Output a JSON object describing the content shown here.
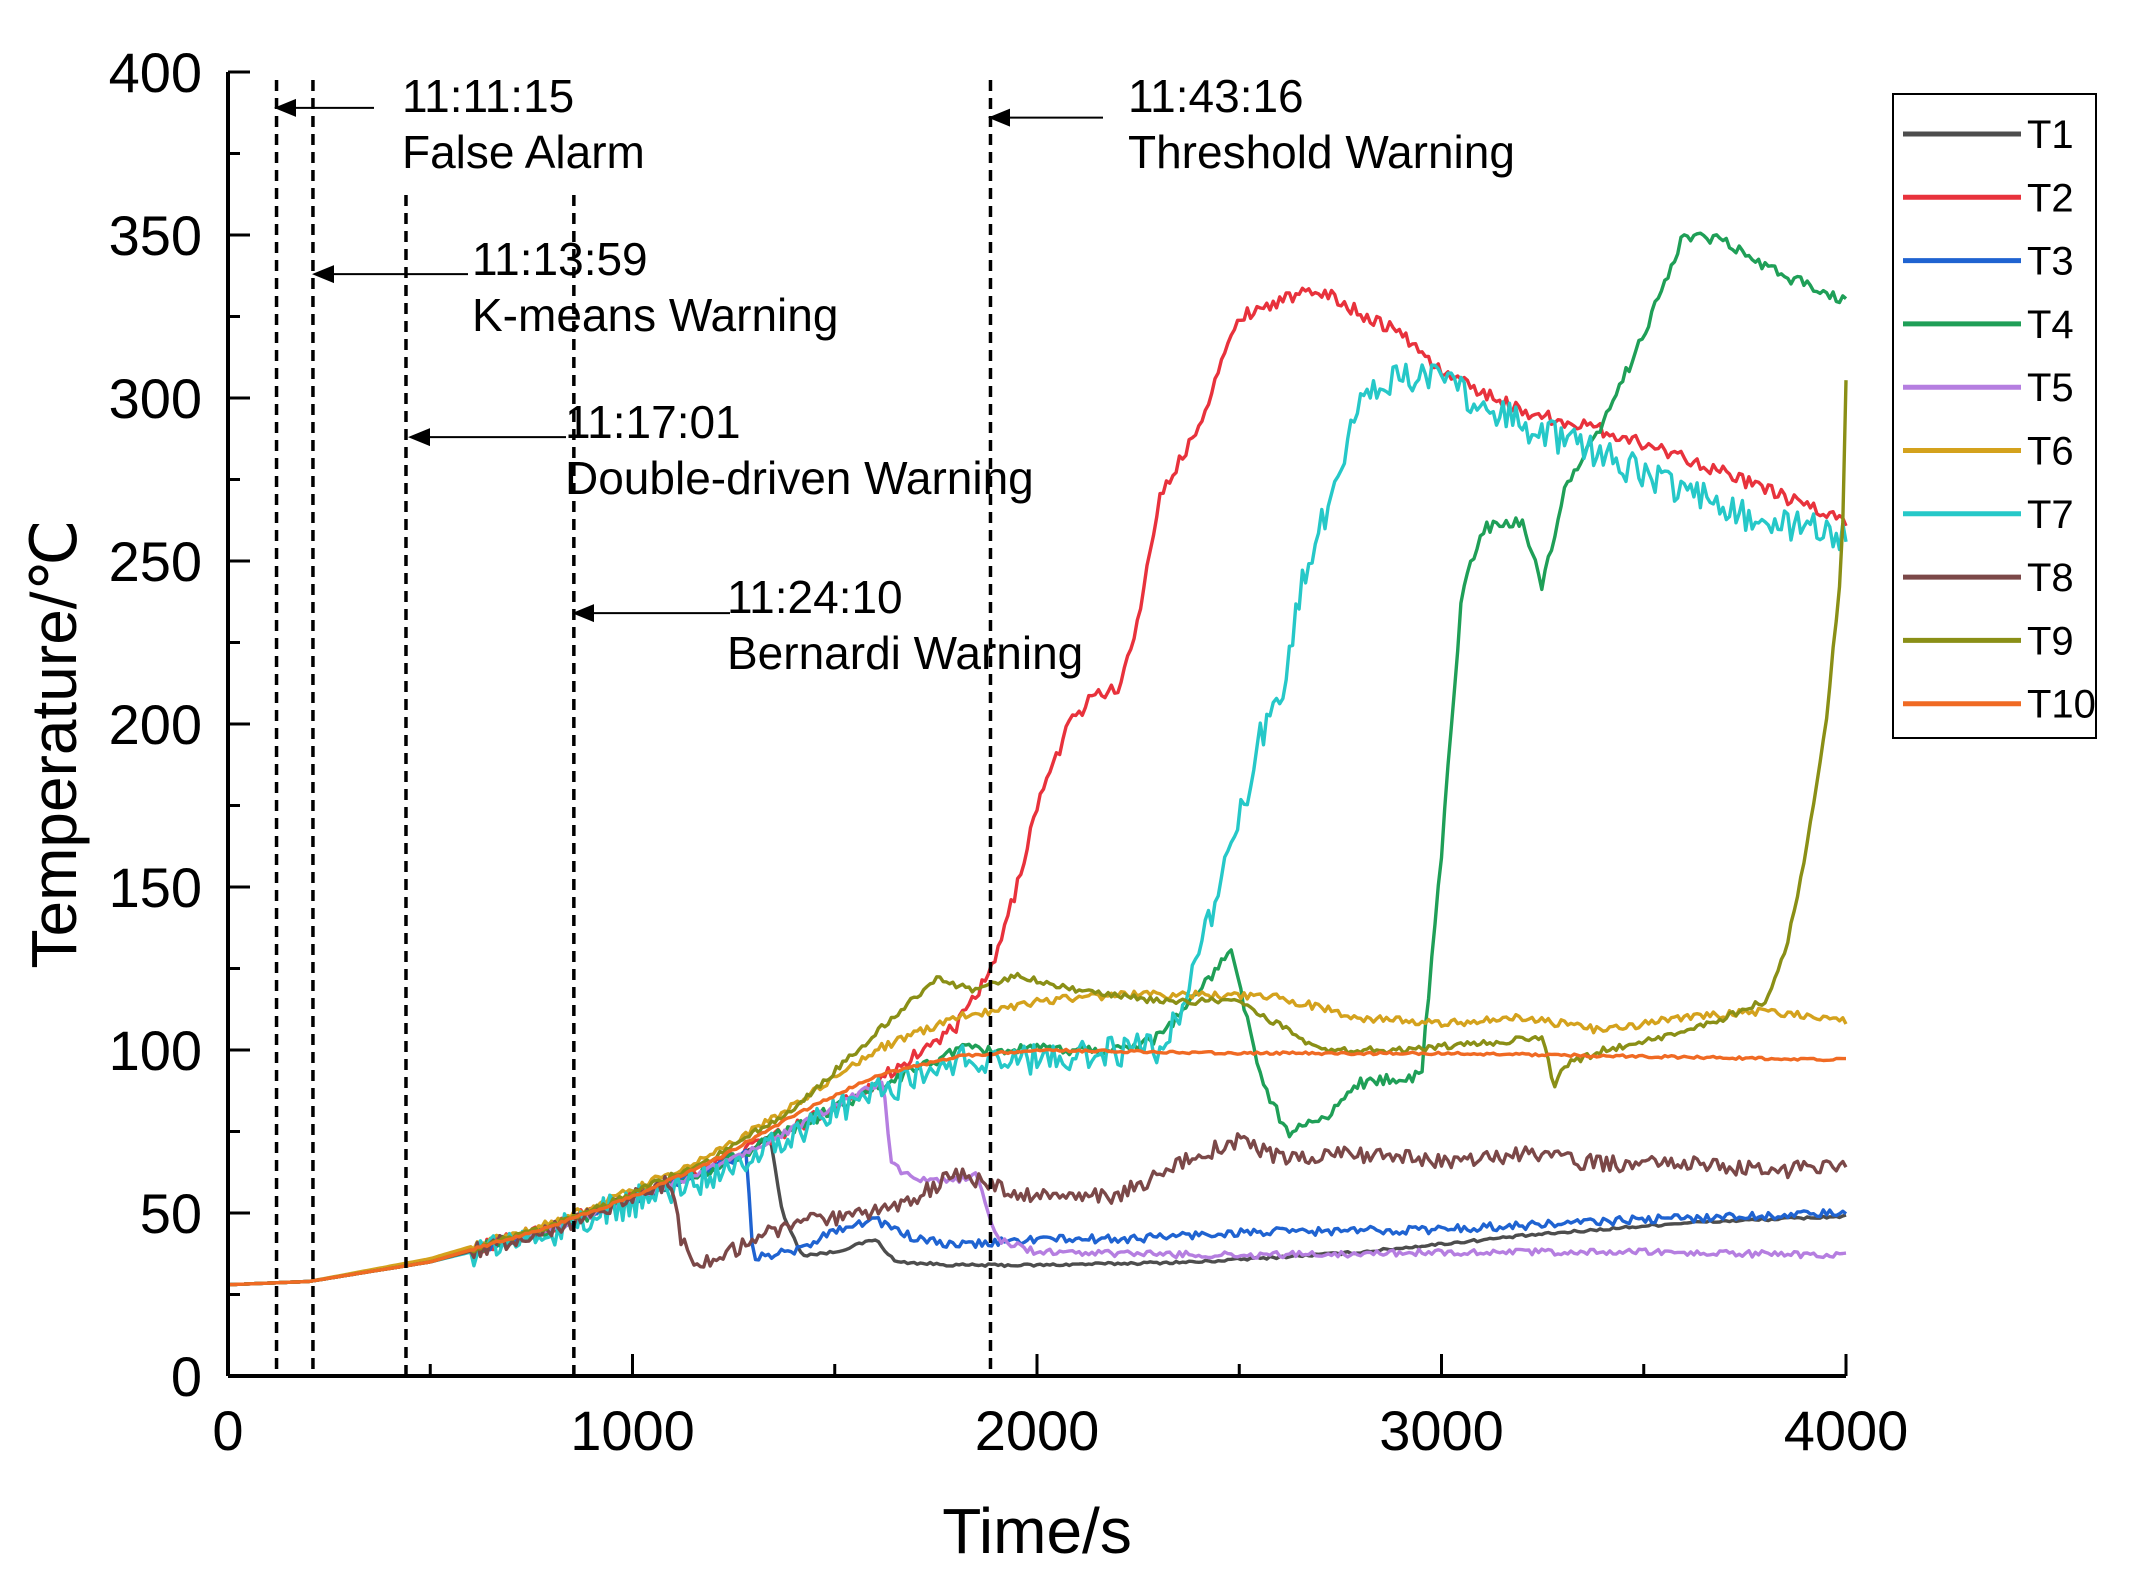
{
  "chart_data": {
    "type": "line",
    "title": "",
    "xlabel": "Time/s",
    "ylabel": "Temperature/℃",
    "xlim": [
      0,
      4000
    ],
    "ylim": [
      0,
      400
    ],
    "xticks": [
      0,
      1000,
      2000,
      3000,
      4000
    ],
    "xtick_labels": [
      "0",
      "1000",
      "2000",
      "3000",
      "4000"
    ],
    "yticks": [
      0,
      50,
      100,
      150,
      200,
      250,
      300,
      350,
      400
    ],
    "ytick_labels": [
      "0",
      "50",
      "100",
      "150",
      "200",
      "250",
      "300",
      "350",
      "400"
    ],
    "grid": false,
    "legend_position": "top-right",
    "annotations": [
      {
        "time_line": 120,
        "time_label": "11:11:15",
        "text": "False Alarm",
        "arrow_value": 389
      },
      {
        "time_line": 210,
        "time_label": "11:13:59",
        "text": "K-means Warning",
        "arrow_value": 338
      },
      {
        "time_line": 440,
        "time_label": "11:17:01",
        "text": "Double-driven Warning",
        "arrow_value": 288
      },
      {
        "time_line": 855,
        "time_label": "11:24:10",
        "text": "Bernardi Warning",
        "arrow_value": 234
      },
      {
        "time_line": 1885,
        "time_label": "11:43:16",
        "text": "Threshold Warning",
        "arrow_value": 386
      }
    ],
    "series": [
      {
        "name": "T1",
        "color": "#4d4d4d",
        "noise": 0.4,
        "x": [
          0,
          200,
          500,
          800,
          1000,
          1200,
          1300,
          1340,
          1370,
          1420,
          1500,
          1600,
          1650,
          1800,
          2000,
          2400,
          2800,
          3200,
          3600,
          4000
        ],
        "y": [
          28,
          29,
          35,
          45,
          54,
          63,
          70,
          74,
          50,
          37,
          38,
          42,
          35,
          34,
          34,
          35,
          38,
          43,
          47,
          49
        ]
      },
      {
        "name": "T2",
        "color": "#e8323c",
        "noise": 2.0,
        "x": [
          0,
          200,
          500,
          800,
          1000,
          1200,
          1400,
          1600,
          1800,
          1890,
          1950,
          2000,
          2080,
          2150,
          2200,
          2250,
          2300,
          2400,
          2500,
          2600,
          2700,
          2800,
          2900,
          3000,
          3200,
          3400,
          3600,
          3800,
          4000
        ],
        "y": [
          28,
          29,
          35,
          46,
          55,
          65,
          76,
          90,
          107,
          125,
          150,
          175,
          200,
          210,
          210,
          232,
          268,
          292,
          325,
          330,
          333,
          326,
          320,
          308,
          296,
          290,
          282,
          272,
          262
        ]
      },
      {
        "name": "T3",
        "color": "#1f63d1",
        "noise": 1.3,
        "x": [
          0,
          200,
          500,
          800,
          1000,
          1200,
          1280,
          1300,
          1320,
          1400,
          1500,
          1600,
          1700,
          1800,
          2000,
          2200,
          2500,
          3000,
          3500,
          4000
        ],
        "y": [
          28,
          29,
          35,
          45,
          54,
          64,
          68,
          35,
          37,
          38,
          45,
          48,
          42,
          40,
          42,
          42,
          44,
          45,
          48,
          50
        ]
      },
      {
        "name": "T4",
        "color": "#1f9f57",
        "noise": 1.8,
        "x": [
          0,
          200,
          500,
          800,
          1000,
          1200,
          1400,
          1600,
          1800,
          2000,
          2200,
          2300,
          2400,
          2480,
          2520,
          2560,
          2620,
          2700,
          2800,
          2950,
          3000,
          3050,
          3100,
          3200,
          3250,
          3300,
          3400,
          3500,
          3600,
          3700,
          3800,
          3900,
          4000
        ],
        "y": [
          28,
          29,
          35,
          45,
          54,
          64,
          76,
          88,
          100,
          100,
          100,
          104,
          118,
          130,
          110,
          88,
          75,
          78,
          90,
          92,
          160,
          240,
          260,
          262,
          242,
          270,
          292,
          320,
          350,
          348,
          340,
          335,
          330
        ]
      },
      {
        "name": "T5",
        "color": "#b57ee0",
        "noise": 1.0,
        "x": [
          0,
          200,
          500,
          800,
          1000,
          1200,
          1400,
          1580,
          1620,
          1640,
          1700,
          1800,
          1850,
          1900,
          2000,
          2500,
          3000,
          3500,
          4000
        ],
        "y": [
          28,
          29,
          35,
          45,
          54,
          64,
          76,
          88,
          90,
          65,
          60,
          60,
          62,
          42,
          38,
          37,
          38,
          38,
          37
        ]
      },
      {
        "name": "T6",
        "color": "#d4a21d",
        "noise": 1.2,
        "x": [
          0,
          200,
          500,
          800,
          1000,
          1200,
          1400,
          1600,
          1800,
          2000,
          2200,
          2400,
          2600,
          2800,
          3000,
          3200,
          3400,
          3600,
          3800,
          4000
        ],
        "y": [
          28,
          29,
          36,
          47,
          57,
          68,
          83,
          100,
          110,
          115,
          117,
          117,
          116,
          110,
          108,
          110,
          106,
          110,
          112,
          109
        ]
      },
      {
        "name": "T7",
        "color": "#26c8c8",
        "noise": 5.0,
        "x": [
          0,
          200,
          500,
          800,
          1000,
          1200,
          1400,
          1600,
          1800,
          2000,
          2200,
          2300,
          2350,
          2400,
          2450,
          2500,
          2550,
          2600,
          2650,
          2700,
          2750,
          2800,
          2900,
          3000,
          3200,
          3400,
          3600,
          3800,
          4000
        ],
        "y": [
          28,
          29,
          35,
          44,
          53,
          62,
          75,
          87,
          97,
          97,
          100,
          100,
          110,
          130,
          150,
          170,
          195,
          205,
          240,
          260,
          280,
          300,
          308,
          305,
          292,
          282,
          272,
          262,
          258
        ]
      },
      {
        "name": "T8",
        "color": "#7b4848",
        "noise": 2.5,
        "x": [
          0,
          200,
          500,
          800,
          1000,
          1100,
          1120,
          1150,
          1200,
          1300,
          1400,
          1500,
          1600,
          1700,
          1800,
          1900,
          2000,
          2100,
          2200,
          2300,
          2400,
          2500,
          2600,
          2800,
          3000,
          3200,
          3400,
          3600,
          3800,
          4000
        ],
        "y": [
          28,
          29,
          35,
          45,
          55,
          60,
          42,
          35,
          35,
          42,
          47,
          48,
          50,
          55,
          62,
          58,
          55,
          55,
          55,
          62,
          68,
          72,
          67,
          68,
          66,
          68,
          65,
          65,
          63,
          64
        ]
      },
      {
        "name": "T9",
        "color": "#8a8f16",
        "noise": 1.0,
        "x": [
          0,
          200,
          500,
          800,
          1000,
          1200,
          1400,
          1600,
          1750,
          1850,
          1950,
          2100,
          2300,
          2500,
          2700,
          2900,
          3100,
          3250,
          3280,
          3300,
          3400,
          3600,
          3700,
          3800,
          3850,
          3900,
          3950,
          3990,
          4000
        ],
        "y": [
          28,
          29,
          35,
          46,
          56,
          67,
          82,
          105,
          122,
          118,
          123,
          118,
          115,
          115,
          100,
          100,
          102,
          104,
          88,
          95,
          100,
          105,
          110,
          115,
          130,
          160,
          200,
          250,
          305
        ]
      },
      {
        "name": "T10",
        "color": "#f06a23",
        "noise": 0.4,
        "x": [
          0,
          200,
          500,
          800,
          1000,
          1200,
          1400,
          1600,
          1800,
          2000,
          2500,
          3000,
          3500,
          4000
        ],
        "y": [
          28,
          29,
          35,
          46,
          55,
          66,
          80,
          92,
          98,
          100,
          99,
          99,
          98,
          97
        ]
      }
    ]
  }
}
